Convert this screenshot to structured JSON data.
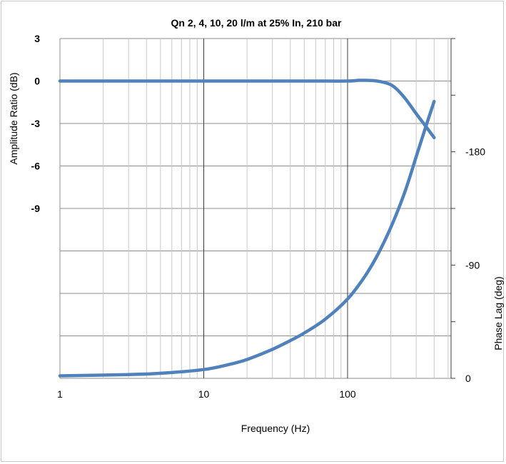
{
  "chart_data": {
    "type": "line",
    "title": "Qn 2, 4, 10, 20 l/m at 25% In, 210 bar",
    "xlabel": "Frequency (Hz)",
    "ylabel_left": "Amplitude Ratio (dB)",
    "ylabel_right": "Phase Lag (deg)",
    "x_scale": "log",
    "xlim": [
      1,
      500
    ],
    "x_ticks": [
      "1",
      "10",
      "100"
    ],
    "left_axis": {
      "ylim": [
        -21,
        3
      ],
      "ticks": [
        "3",
        "0",
        "-3",
        "-6",
        "-9"
      ]
    },
    "right_axis": {
      "ylim": [
        0,
        270
      ],
      "ticks": [
        "-180",
        "-90",
        "0"
      ]
    },
    "grid": true,
    "color": "#4f81bd",
    "series": [
      {
        "axis": "left",
        "x": [
          1,
          10,
          50,
          100,
          120,
          150,
          180,
          210,
          250,
          300,
          350,
          400
        ],
        "y": [
          0,
          0,
          0,
          0,
          0.05,
          0.03,
          -0.1,
          -0.4,
          -1.2,
          -2.3,
          -3.2,
          -4.0
        ]
      },
      {
        "axis": "right",
        "x": [
          1,
          3,
          5,
          10,
          15,
          20,
          30,
          40,
          50,
          70,
          100,
          130,
          160,
          200,
          250,
          300,
          350,
          400
        ],
        "y": [
          2,
          3,
          4,
          7,
          11,
          15,
          23,
          30,
          36,
          47,
          63,
          80,
          97,
          120,
          148,
          176,
          200,
          220
        ]
      }
    ]
  }
}
